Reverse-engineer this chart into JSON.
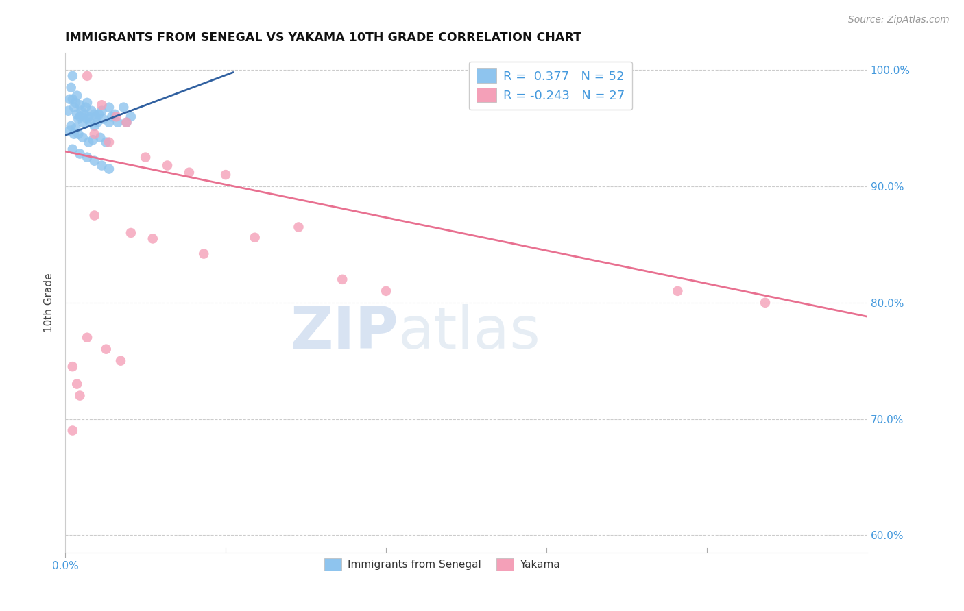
{
  "title": "IMMIGRANTS FROM SENEGAL VS YAKAMA 10TH GRADE CORRELATION CHART",
  "source": "Source: ZipAtlas.com",
  "ylabel": "10th Grade",
  "legend_label1": "Immigrants from Senegal",
  "legend_label2": "Yakama",
  "R1": 0.377,
  "N1": 52,
  "R2": -0.243,
  "N2": 27,
  "xlim": [
    0.0,
    0.055
  ],
  "ylim": [
    0.585,
    1.015
  ],
  "y_ticks": [
    0.6,
    0.7,
    0.8,
    0.9,
    1.0
  ],
  "y_tick_labels": [
    "60.0%",
    "70.0%",
    "80.0%",
    "90.0%",
    "100.0%"
  ],
  "color_blue": "#8EC4EE",
  "color_pink": "#F4A0B8",
  "line_blue": "#3060A0",
  "line_pink": "#E87090",
  "bg_color": "#FFFFFF",
  "grid_color": "#CCCCCC",
  "watermark_zip": "ZIP",
  "watermark_atlas": "atlas",
  "blue_x": [
    0.0002,
    0.0003,
    0.0004,
    0.0005,
    0.0005,
    0.0006,
    0.0007,
    0.0008,
    0.0008,
    0.0009,
    0.001,
    0.001,
    0.0011,
    0.0012,
    0.0013,
    0.0014,
    0.0015,
    0.0015,
    0.0016,
    0.0017,
    0.0018,
    0.002,
    0.002,
    0.0021,
    0.0022,
    0.0023,
    0.0025,
    0.0026,
    0.003,
    0.003,
    0.0032,
    0.0034,
    0.0036,
    0.004,
    0.0042,
    0.0045,
    0.0003,
    0.0004,
    0.0006,
    0.0007,
    0.0009,
    0.0012,
    0.0016,
    0.0019,
    0.0024,
    0.0028,
    0.0005,
    0.001,
    0.0015,
    0.002,
    0.0025,
    0.003
  ],
  "blue_y": [
    0.965,
    0.975,
    0.985,
    0.995,
    0.975,
    0.968,
    0.972,
    0.978,
    0.962,
    0.958,
    0.97,
    0.96,
    0.965,
    0.955,
    0.962,
    0.968,
    0.958,
    0.972,
    0.96,
    0.955,
    0.965,
    0.962,
    0.952,
    0.96,
    0.955,
    0.962,
    0.965,
    0.958,
    0.968,
    0.955,
    0.96,
    0.962,
    0.955,
    0.968,
    0.955,
    0.96,
    0.948,
    0.952,
    0.945,
    0.95,
    0.945,
    0.942,
    0.938,
    0.94,
    0.942,
    0.938,
    0.932,
    0.928,
    0.925,
    0.922,
    0.918,
    0.915
  ],
  "pink_x": [
    0.0015,
    0.0025,
    0.0035,
    0.0042,
    0.002,
    0.003,
    0.0055,
    0.007,
    0.0085,
    0.011,
    0.002,
    0.0045,
    0.006,
    0.0095,
    0.013,
    0.016,
    0.019,
    0.022,
    0.0015,
    0.0028,
    0.0038,
    0.048,
    0.042,
    0.0005,
    0.0008,
    0.001,
    0.0005
  ],
  "pink_y": [
    0.995,
    0.97,
    0.96,
    0.955,
    0.945,
    0.938,
    0.925,
    0.918,
    0.912,
    0.91,
    0.875,
    0.86,
    0.855,
    0.842,
    0.856,
    0.865,
    0.82,
    0.81,
    0.77,
    0.76,
    0.75,
    0.8,
    0.81,
    0.745,
    0.73,
    0.72,
    0.69
  ],
  "blue_line_x0": 0.0,
  "blue_line_x1": 0.0115,
  "blue_line_y0": 0.944,
  "blue_line_y1": 0.998,
  "pink_line_x0": 0.0,
  "pink_line_x1": 0.055,
  "pink_line_y0": 0.93,
  "pink_line_y1": 0.788
}
